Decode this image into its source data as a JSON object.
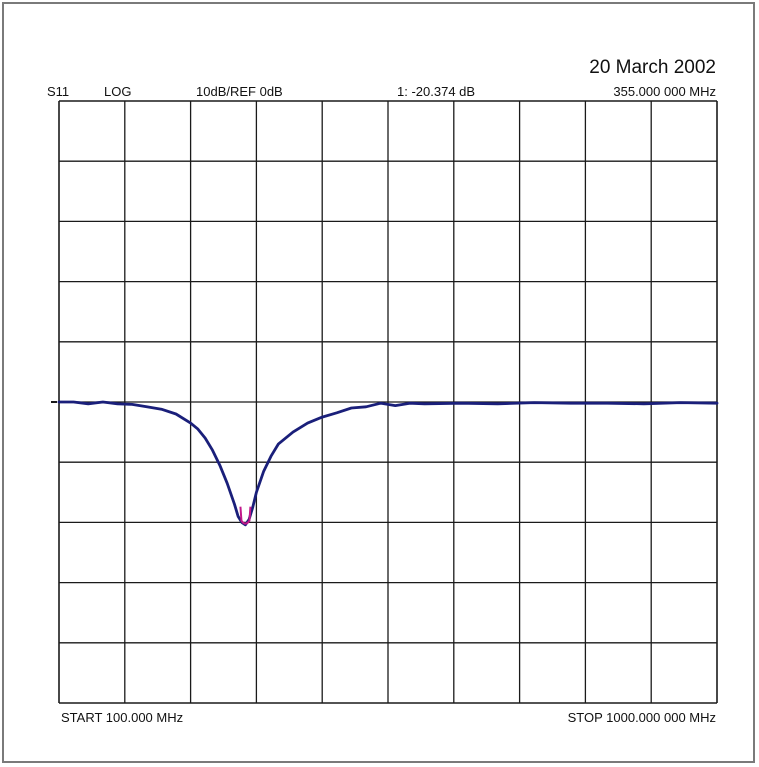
{
  "header": {
    "parameter": "S11",
    "format": "LOG",
    "scale": "10dB/REF 0dB",
    "marker_readout": "1: -20.374 dB",
    "marker_frequency": "355.000 000 MHz",
    "date": "20 March 2002"
  },
  "footer": {
    "start": "START 100.000 MHz",
    "stop": "STOP 1000.000 000 MHz"
  },
  "colors": {
    "trace": "#1a1f7a",
    "marker": "#c2188a",
    "grid": "#1a1a1a"
  },
  "chart_data": {
    "type": "line",
    "title": "",
    "xlabel": "",
    "ylabel": "",
    "xlim": [
      100,
      1000
    ],
    "ylim": [
      -50,
      50
    ],
    "reference_level": 0,
    "x_divisions": 10,
    "y_divisions": 10,
    "grid": true,
    "series": [
      {
        "x": [
          100,
          120,
          140,
          160,
          180,
          200,
          220,
          240,
          260,
          280,
          290,
          300,
          310,
          320,
          330,
          340,
          345,
          350,
          355,
          360,
          365,
          370,
          380,
          390,
          400,
          420,
          440,
          460,
          480,
          500,
          520,
          540,
          560,
          580,
          600,
          650,
          700,
          750,
          800,
          850,
          900,
          950,
          1000
        ],
        "y": [
          0,
          0,
          -0.3,
          0,
          -0.3,
          -0.4,
          -0.8,
          -1.2,
          -2,
          -3.5,
          -4.5,
          -6,
          -8,
          -10.5,
          -13.5,
          -17,
          -19,
          -20,
          -20.4,
          -19.5,
          -17.5,
          -15,
          -11.5,
          -9,
          -7,
          -5,
          -3.5,
          -2.5,
          -1.8,
          -1,
          -0.8,
          -0.2,
          -0.6,
          -0.2,
          -0.3,
          -0.2,
          -0.3,
          -0.1,
          -0.2,
          -0.2,
          -0.3,
          -0.1,
          -0.2
        ]
      }
    ],
    "marker": {
      "label": "1",
      "x": 355,
      "y": -20.374
    }
  }
}
